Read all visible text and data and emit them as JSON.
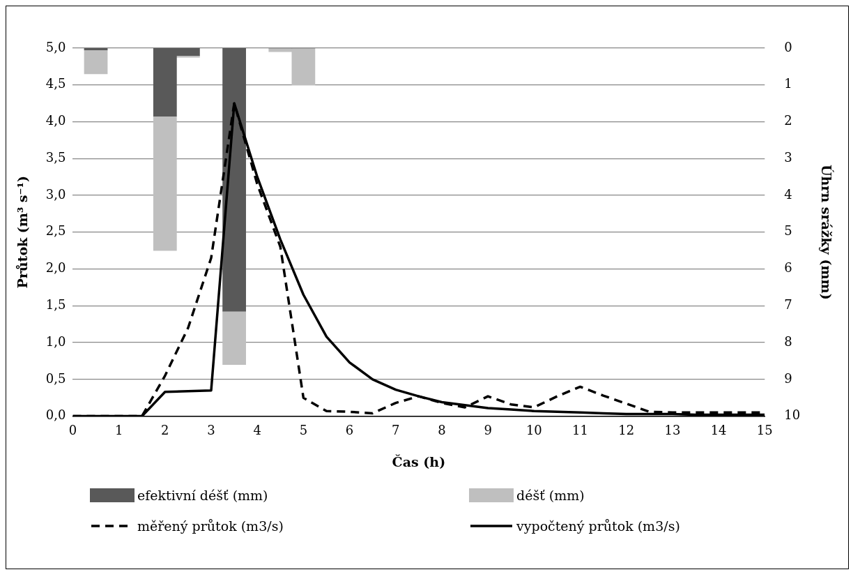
{
  "chart_data": {
    "type": "line",
    "xlabel": "Čas (h)",
    "ylabel": "Průtok (m³ s⁻¹)",
    "y2label": "Úhrn srážky (mm)",
    "x": [
      0,
      0.5,
      1,
      1.5,
      2,
      2.5,
      3,
      3.5,
      4,
      4.5,
      5,
      5.5,
      6,
      6.5,
      7,
      7.5,
      8,
      8.5,
      9,
      9.5,
      10,
      10.5,
      11,
      11.5,
      12,
      12.5,
      13,
      13.5,
      14,
      14.5,
      15
    ],
    "xlim": [
      0,
      15
    ],
    "xticks": [
      0,
      1,
      2,
      3,
      4,
      5,
      6,
      7,
      8,
      9,
      10,
      11,
      12,
      13,
      14,
      15
    ],
    "ylim": [
      0,
      5
    ],
    "yticks": [
      {
        "value": 0,
        "label": "0,0"
      },
      {
        "value": 0.5,
        "label": "0,5"
      },
      {
        "value": 1,
        "label": "1,0"
      },
      {
        "value": 1.5,
        "label": "1,5"
      },
      {
        "value": 2,
        "label": "2,0"
      },
      {
        "value": 2.5,
        "label": "2,5"
      },
      {
        "value": 3,
        "label": "3,0"
      },
      {
        "value": 3.5,
        "label": "3,5"
      },
      {
        "value": 4,
        "label": "4,0"
      },
      {
        "value": 4.5,
        "label": "4,5"
      },
      {
        "value": 5,
        "label": "5,0"
      }
    ],
    "y2lim": [
      10,
      0
    ],
    "y2ticks": [
      0,
      1,
      2,
      3,
      4,
      5,
      6,
      7,
      8,
      9,
      10
    ],
    "stacked": true,
    "grid": "y",
    "legend": "bottom",
    "series": [
      {
        "name": "efektivní déšť (mm)",
        "type": "bar",
        "axis": "y2",
        "color": "#595959",
        "x": [
          0.5,
          2,
          2.5,
          3.5,
          4.5,
          5
        ],
        "values": [
          0.05,
          1.85,
          0.2,
          7.15,
          0,
          0
        ]
      },
      {
        "name": "déšť (mm)",
        "type": "bar",
        "axis": "y2",
        "color": "#bfbfbf",
        "x": [
          0.5,
          2,
          2.5,
          3.5,
          4.5,
          5
        ],
        "values": [
          0.65,
          3.65,
          0.05,
          1.45,
          0.1,
          1.0
        ]
      },
      {
        "name": "měřený průtok (m3/s)",
        "color": "#000000",
        "line_style": "dashed",
        "marker": "none",
        "values": [
          0,
          0,
          0,
          0,
          0.55,
          1.2,
          2.15,
          4.25,
          3.15,
          2.3,
          0.25,
          0.07,
          0.06,
          0.04,
          0.18,
          0.27,
          0.18,
          0.12,
          0.27,
          0.16,
          0.12,
          0.27,
          0.4,
          0.28,
          0.17,
          0.06,
          0.05,
          0.05,
          0.05,
          0.05,
          0.05
        ]
      },
      {
        "name": "vypočtený průtok (m3/s)",
        "color": "#000000",
        "line_style": "solid",
        "marker": "none",
        "values": [
          0,
          0,
          0,
          0,
          0.33,
          0.34,
          0.35,
          4.25,
          3.25,
          2.4,
          1.65,
          1.08,
          0.73,
          0.5,
          0.36,
          0.27,
          0.19,
          0.15,
          0.11,
          0.09,
          0.07,
          0.06,
          0.05,
          0.04,
          0.03,
          0.03,
          0.03,
          0.02,
          0.02,
          0.02,
          0.02
        ]
      }
    ]
  }
}
